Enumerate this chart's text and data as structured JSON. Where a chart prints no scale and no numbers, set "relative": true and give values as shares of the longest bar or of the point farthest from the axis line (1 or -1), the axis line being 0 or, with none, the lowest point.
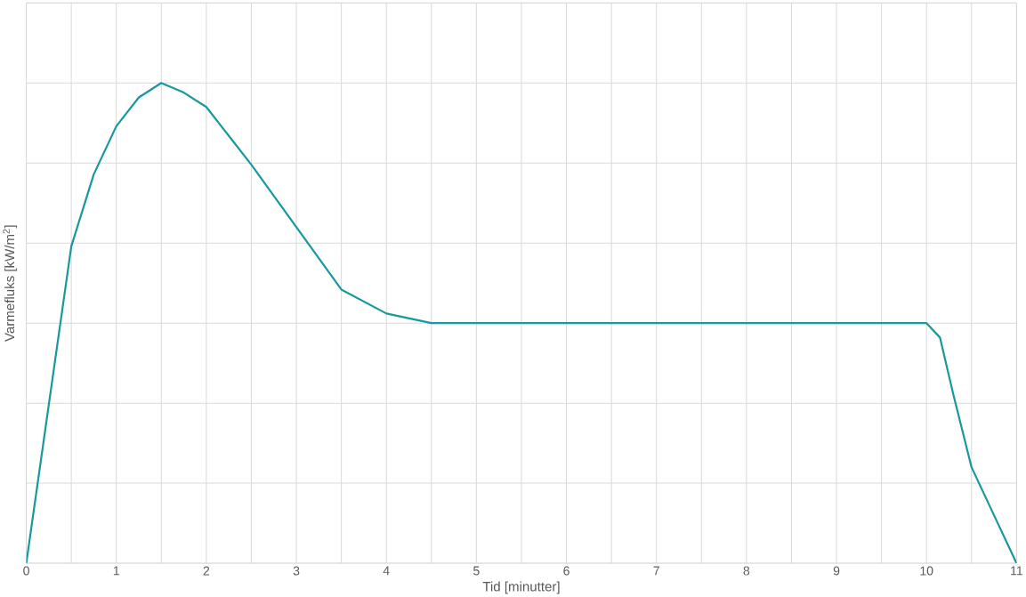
{
  "chart_data": {
    "type": "line",
    "xlabel": "Tid [minutter]",
    "ylabel": "Varmefluks [kW/m$^{2}$]",
    "relative": true,
    "grid": true,
    "marker": "none",
    "line_style": "solid",
    "xlim": [
      0,
      11
    ],
    "xticks": [
      0,
      1,
      2,
      3,
      4,
      5,
      6,
      7,
      8,
      9,
      10,
      11
    ],
    "series": [
      {
        "color": "#17999d",
        "x": [
          0,
          0.25,
          0.5,
          0.75,
          1,
          1.25,
          1.5,
          1.75,
          2,
          2.5,
          3,
          3.5,
          4,
          4.5,
          5,
          5.5,
          6,
          7,
          8,
          9,
          9.5,
          9.8,
          10,
          10.15,
          10.3,
          10.5,
          10.75,
          11
        ],
        "values": [
          0,
          0.33,
          0.66,
          0.81,
          0.91,
          0.97,
          1.0,
          0.98,
          0.95,
          0.83,
          0.7,
          0.57,
          0.52,
          0.5,
          0.5,
          0.5,
          0.5,
          0.5,
          0.5,
          0.5,
          0.5,
          0.5,
          0.5,
          0.47,
          0.35,
          0.2,
          0.1,
          0
        ]
      }
    ]
  }
}
